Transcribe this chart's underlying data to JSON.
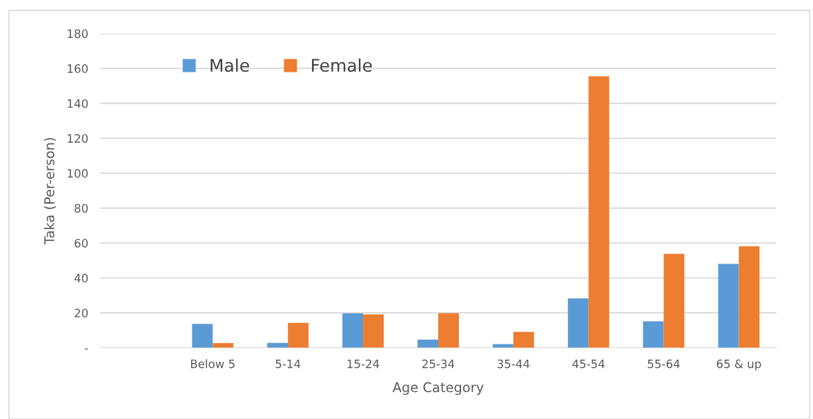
{
  "chart_data": {
    "type": "bar",
    "xlabel": "Age Category",
    "ylabel": "Taka (Per-erson)",
    "categories": [
      null,
      "Below 5",
      "5-14",
      "15-24",
      "25-34",
      "35-44",
      "45-54",
      "55-64",
      "65 & up"
    ],
    "series": [
      {
        "name": "Male",
        "color": "#5b9bd5",
        "values": [
          null,
          13.7,
          2.8,
          19.7,
          4.7,
          2.1,
          28.3,
          15.1,
          48.1
        ]
      },
      {
        "name": "Female",
        "color": "#ed7d31",
        "values": [
          null,
          2.7,
          14.3,
          19.1,
          19.8,
          9.1,
          155.5,
          53.8,
          58.1
        ]
      }
    ],
    "ylim": [
      0,
      180
    ],
    "yticks": [
      {
        "value": 0,
        "label": "-"
      },
      20,
      40,
      60,
      80,
      100,
      120,
      140,
      160,
      180
    ],
    "grid": "y",
    "legend": "top left"
  }
}
